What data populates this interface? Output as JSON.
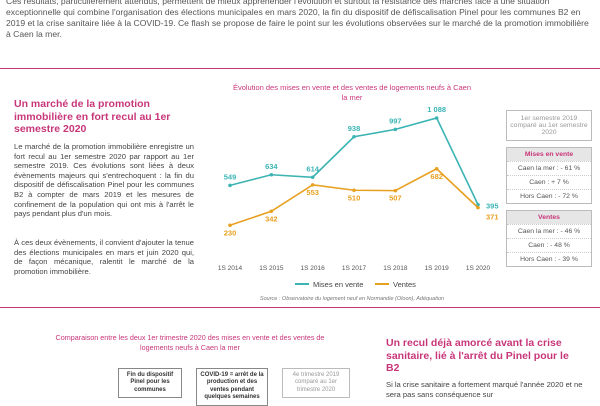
{
  "intro": "Ces résultats, particulièrement attendus, permettent de mieux appréhender l'évolution et surtout la résistance des marchés face à une situation exceptionnelle qui combine l'organisation des élections municipales en mars 2020, la fin du dispositif de défiscalisation Pinel pour les communes B2 en 2019 et la crise sanitaire liée à la COVID-19. Ce flash se propose de faire le point sur les évolutions observées sur le marché de la promotion immobilière à Caen la mer.",
  "left": {
    "title": "Un marché de la promotion immobilière en fort recul au 1er semestre 2020",
    "paragraphs": [
      "Le marché de la promotion immobilière enregistre un fort recul au 1er semestre 2020 par rapport au 1er semestre 2019. Ces évolutions sont liées à deux évènements majeurs qui s'entrechoquent : la fin du dispositif de défiscalisation Pinel pour les communes B2 à compter de mars 2019 et les mesures de confinement de la population qui ont mis à l'arrêt le pays pendant plus d'un mois.",
      "À ces deux évènements, il convient d'ajouter la tenue des élections municipales en mars et juin 2020 qui, de façon mécanique, ralentit le marché de la promotion immobilière."
    ]
  },
  "chart_data": {
    "type": "line",
    "title": "Évolution des mises en vente et des ventes de logements neufs à Caen la mer",
    "categories": [
      "1S 2014",
      "1S 2015",
      "1S 2016",
      "1S 2017",
      "1S 2018",
      "1S 2019",
      "1S 2020"
    ],
    "series": [
      {
        "name": "Mises en vente",
        "color": "#3cb4b4",
        "values": [
          549,
          634,
          614,
          938,
          997,
          1088,
          395
        ],
        "value_labels": [
          "549",
          "634",
          "614",
          "938",
          "997",
          "1 088",
          "395"
        ]
      },
      {
        "name": "Ventes",
        "color": "#e8a020",
        "values": [
          230,
          342,
          553,
          510,
          507,
          682,
          371
        ]
      }
    ],
    "legend": "bottom",
    "source": "Source : Observatoire du logement neuf en Normandie (Oloon), Adéquation"
  },
  "sidebar": {
    "period": "1er semestre 2019 comparé au 1er semestre 2020",
    "groups": [
      {
        "title": "Mises en vente",
        "items": [
          "Caen la mer : - 61 %",
          "Caen : + 7 %",
          "Hors Caen : - 72 %"
        ]
      },
      {
        "title": "Ventes",
        "items": [
          "Caen la mer : - 46 %",
          "Caen : - 48 %",
          "Hors Caen : - 39 %"
        ]
      }
    ]
  },
  "bottom_left": {
    "title": "Comparaison entre les deux 1er trimestre 2020 des mises en vente et des ventes de logements neufs à Caen la mer",
    "boxes": [
      "Fin du dispositif Pinel pour les communes",
      "COVID-19 = arrêt de la production et des ventes pendant quelques semaines",
      "4e trimestre 2019 comparé au 1er trimestre 2020"
    ]
  },
  "bottom_right": {
    "title": "Un recul déjà amorcé avant la crise sanitaire, lié à l'arrêt du Pinel pour le B2",
    "text": "Si la crise sanitaire a fortement marqué l'année 2020 et ne sera pas sans conséquence sur"
  }
}
